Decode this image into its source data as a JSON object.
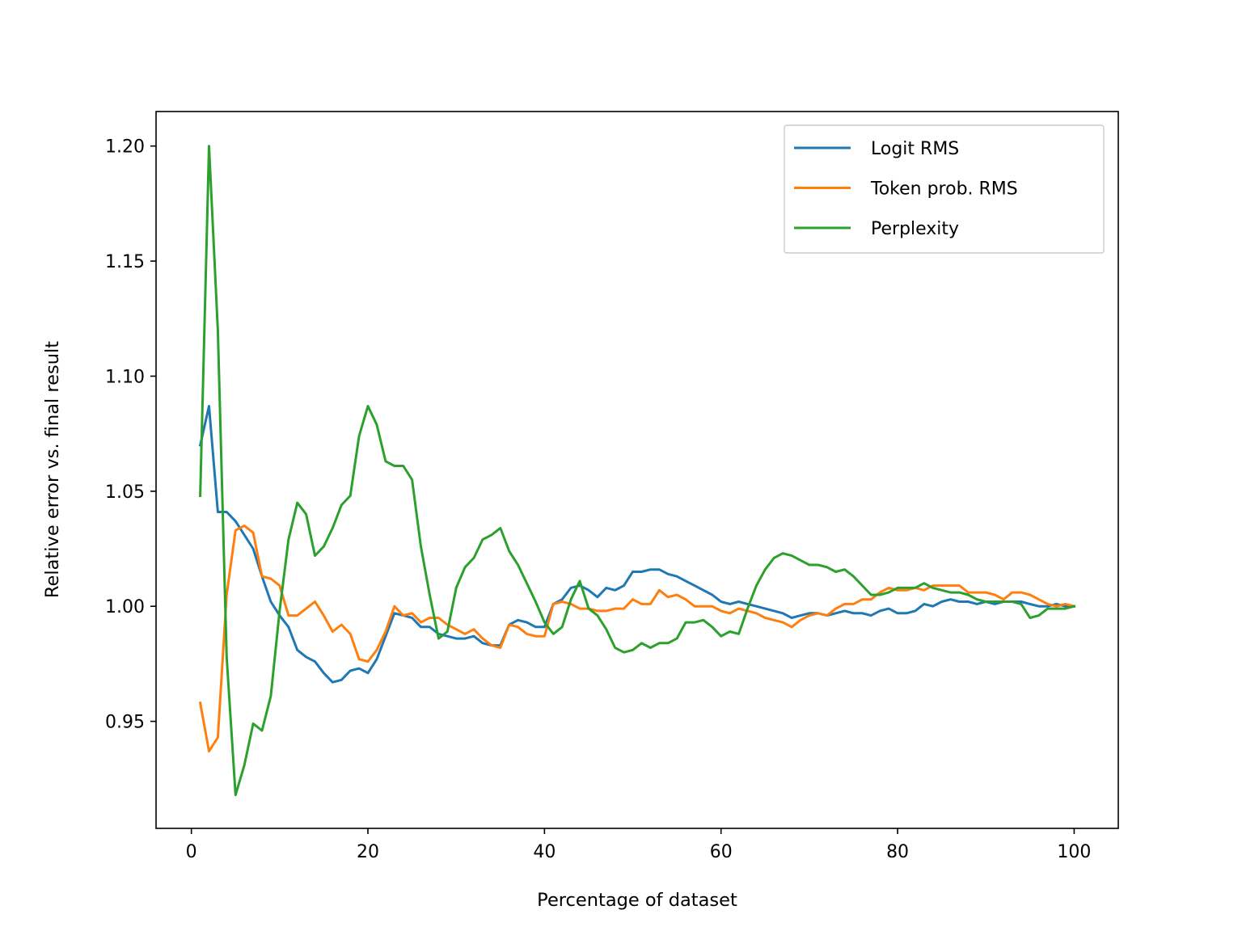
{
  "chart_data": {
    "type": "line",
    "title": "",
    "xlabel": "Percentage of dataset",
    "ylabel": "Relative error vs. final result",
    "xlim": [
      -4,
      105
    ],
    "ylim": [
      0.9035,
      1.215
    ],
    "xticks": [
      0,
      20,
      40,
      60,
      80,
      100
    ],
    "xtick_labels": [
      "0",
      "20",
      "40",
      "60",
      "80",
      "100"
    ],
    "yticks": [
      0.95,
      1.0,
      1.05,
      1.1,
      1.15,
      1.2
    ],
    "ytick_labels": [
      "0.95",
      "1.00",
      "1.05",
      "1.10",
      "1.15",
      "1.20"
    ],
    "grid": false,
    "legend": "top-right",
    "series": [
      {
        "name": "Logit RMS",
        "color": "#1f77b4",
        "x": [
          1,
          2,
          3,
          4,
          5,
          6,
          7,
          8,
          9,
          10,
          11,
          12,
          13,
          14,
          15,
          16,
          17,
          18,
          19,
          20,
          21,
          22,
          23,
          24,
          25,
          26,
          27,
          28,
          29,
          30,
          31,
          32,
          33,
          34,
          35,
          36,
          37,
          38,
          39,
          40,
          41,
          42,
          43,
          44,
          45,
          46,
          47,
          48,
          49,
          50,
          51,
          52,
          53,
          54,
          55,
          56,
          57,
          58,
          59,
          60,
          61,
          62,
          63,
          64,
          65,
          66,
          67,
          68,
          69,
          70,
          71,
          72,
          73,
          74,
          75,
          76,
          77,
          78,
          79,
          80,
          81,
          82,
          83,
          84,
          85,
          86,
          87,
          88,
          89,
          90,
          91,
          92,
          93,
          94,
          95,
          96,
          97,
          98,
          99,
          100
        ],
        "y": [
          1.07,
          1.087,
          1.041,
          1.041,
          1.037,
          1.031,
          1.025,
          1.013,
          1.002,
          0.996,
          0.991,
          0.981,
          0.978,
          0.976,
          0.971,
          0.967,
          0.968,
          0.972,
          0.973,
          0.971,
          0.977,
          0.987,
          0.997,
          0.996,
          0.995,
          0.991,
          0.991,
          0.988,
          0.987,
          0.986,
          0.986,
          0.987,
          0.984,
          0.983,
          0.983,
          0.992,
          0.994,
          0.993,
          0.991,
          0.991,
          1.001,
          1.003,
          1.008,
          1.009,
          1.007,
          1.004,
          1.008,
          1.007,
          1.009,
          1.015,
          1.015,
          1.016,
          1.016,
          1.014,
          1.013,
          1.011,
          1.009,
          1.007,
          1.005,
          1.002,
          1.001,
          1.002,
          1.001,
          1.0,
          0.999,
          0.998,
          0.997,
          0.995,
          0.996,
          0.997,
          0.997,
          0.996,
          0.997,
          0.998,
          0.997,
          0.997,
          0.996,
          0.998,
          0.999,
          0.997,
          0.997,
          0.998,
          1.001,
          1.0,
          1.002,
          1.003,
          1.002,
          1.002,
          1.001,
          1.002,
          1.001,
          1.002,
          1.002,
          1.002,
          1.001,
          1.0,
          1.0,
          1.001,
          1.0,
          1.0
        ]
      },
      {
        "name": "Token prob. RMS",
        "color": "#ff7f0e",
        "x": [
          1,
          2,
          3,
          4,
          5,
          6,
          7,
          8,
          9,
          10,
          11,
          12,
          13,
          14,
          15,
          16,
          17,
          18,
          19,
          20,
          21,
          22,
          23,
          24,
          25,
          26,
          27,
          28,
          29,
          30,
          31,
          32,
          33,
          34,
          35,
          36,
          37,
          38,
          39,
          40,
          41,
          42,
          43,
          44,
          45,
          46,
          47,
          48,
          49,
          50,
          51,
          52,
          53,
          54,
          55,
          56,
          57,
          58,
          59,
          60,
          61,
          62,
          63,
          64,
          65,
          66,
          67,
          68,
          69,
          70,
          71,
          72,
          73,
          74,
          75,
          76,
          77,
          78,
          79,
          80,
          81,
          82,
          83,
          84,
          85,
          86,
          87,
          88,
          89,
          90,
          91,
          92,
          93,
          94,
          95,
          96,
          97,
          98,
          99,
          100
        ],
        "y": [
          0.958,
          0.937,
          0.943,
          1.005,
          1.033,
          1.035,
          1.032,
          1.013,
          1.012,
          1.009,
          0.996,
          0.996,
          0.999,
          1.002,
          0.996,
          0.989,
          0.992,
          0.988,
          0.977,
          0.976,
          0.981,
          0.989,
          1.0,
          0.996,
          0.997,
          0.993,
          0.995,
          0.995,
          0.992,
          0.99,
          0.988,
          0.99,
          0.986,
          0.983,
          0.982,
          0.992,
          0.991,
          0.988,
          0.987,
          0.987,
          1.001,
          1.002,
          1.001,
          0.999,
          0.999,
          0.998,
          0.998,
          0.999,
          0.999,
          1.003,
          1.001,
          1.001,
          1.007,
          1.004,
          1.005,
          1.003,
          1.0,
          1.0,
          1.0,
          0.998,
          0.997,
          0.999,
          0.998,
          0.997,
          0.995,
          0.994,
          0.993,
          0.991,
          0.994,
          0.996,
          0.997,
          0.996,
          0.999,
          1.001,
          1.001,
          1.003,
          1.003,
          1.006,
          1.008,
          1.007,
          1.007,
          1.008,
          1.007,
          1.009,
          1.009,
          1.009,
          1.009,
          1.006,
          1.006,
          1.006,
          1.005,
          1.003,
          1.006,
          1.006,
          1.005,
          1.003,
          1.001,
          1.0,
          1.001,
          1.0
        ]
      },
      {
        "name": "Perplexity",
        "color": "#2ca02c",
        "x": [
          1,
          2,
          3,
          4,
          5,
          6,
          7,
          8,
          9,
          10,
          11,
          12,
          13,
          14,
          15,
          16,
          17,
          18,
          19,
          20,
          21,
          22,
          23,
          24,
          25,
          26,
          27,
          28,
          29,
          30,
          31,
          32,
          33,
          34,
          35,
          36,
          37,
          38,
          39,
          40,
          41,
          42,
          43,
          44,
          45,
          46,
          47,
          48,
          49,
          50,
          51,
          52,
          53,
          54,
          55,
          56,
          57,
          58,
          59,
          60,
          61,
          62,
          63,
          64,
          65,
          66,
          67,
          68,
          69,
          70,
          71,
          72,
          73,
          74,
          75,
          76,
          77,
          78,
          79,
          80,
          81,
          82,
          83,
          84,
          85,
          86,
          87,
          88,
          89,
          90,
          91,
          92,
          93,
          94,
          95,
          96,
          97,
          98,
          99,
          100
        ],
        "y": [
          1.048,
          1.2,
          1.12,
          0.978,
          0.918,
          0.931,
          0.949,
          0.946,
          0.961,
          0.998,
          1.029,
          1.045,
          1.04,
          1.022,
          1.026,
          1.034,
          1.044,
          1.048,
          1.074,
          1.087,
          1.079,
          1.063,
          1.061,
          1.061,
          1.055,
          1.026,
          1.005,
          0.986,
          0.989,
          1.008,
          1.017,
          1.021,
          1.029,
          1.031,
          1.034,
          1.024,
          1.018,
          1.01,
          1.002,
          0.993,
          0.988,
          0.991,
          1.003,
          1.011,
          0.999,
          0.996,
          0.99,
          0.982,
          0.98,
          0.981,
          0.984,
          0.982,
          0.984,
          0.984,
          0.986,
          0.993,
          0.993,
          0.994,
          0.991,
          0.987,
          0.989,
          0.988,
          0.999,
          1.009,
          1.016,
          1.021,
          1.023,
          1.022,
          1.02,
          1.018,
          1.018,
          1.017,
          1.015,
          1.016,
          1.013,
          1.009,
          1.005,
          1.005,
          1.006,
          1.008,
          1.008,
          1.008,
          1.01,
          1.008,
          1.007,
          1.006,
          1.006,
          1.005,
          1.003,
          1.002,
          1.002,
          1.002,
          1.002,
          1.001,
          0.995,
          0.996,
          0.999,
          0.999,
          0.999,
          1.0
        ]
      }
    ]
  }
}
